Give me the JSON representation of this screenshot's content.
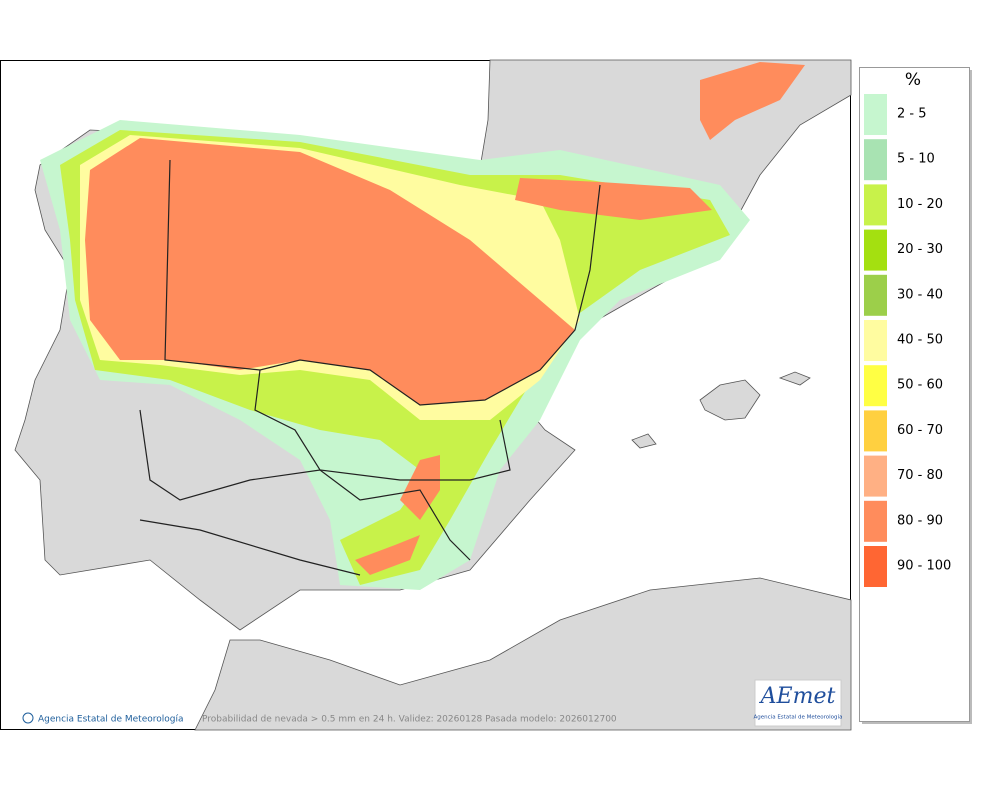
{
  "legend": {
    "title": "%",
    "items": [
      {
        "label": "2 - 5",
        "color": "#c6f6cf"
      },
      {
        "label": "5 - 10",
        "color": "#a8e3b2"
      },
      {
        "label": "10 - 20",
        "color": "#c8f24a"
      },
      {
        "label": "20 - 30",
        "color": "#a4e010"
      },
      {
        "label": "30 - 40",
        "color": "#9ccf4a"
      },
      {
        "label": "40 - 50",
        "color": "#fffca0"
      },
      {
        "label": "50 - 60",
        "color": "#ffff44"
      },
      {
        "label": "60 - 70",
        "color": "#ffd040"
      },
      {
        "label": "70 - 80",
        "color": "#ffb084"
      },
      {
        "label": "80 - 90",
        "color": "#ff8c5c"
      },
      {
        "label": "90 - 100",
        "color": "#ff6633"
      }
    ]
  },
  "footer": {
    "credit": "Agencia Estatal de Meteorología",
    "caption": "Probabilidad de nevada > 0.5 mm en 24 h. Validez: 20260128 Pasada modelo: 2026012700"
  },
  "logo": {
    "name": "AEmet",
    "subtitle": "Agencia Estatal de Meteorología"
  }
}
